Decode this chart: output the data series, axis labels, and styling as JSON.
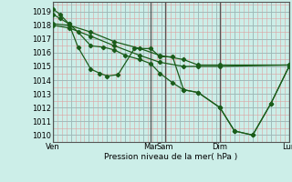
{
  "bg_color": "#cceee8",
  "line_color": "#1a5c1a",
  "xlabel": "Pression niveau de la mer( hPa )",
  "ylim": [
    1009.5,
    1019.7
  ],
  "yticks": [
    1010,
    1011,
    1012,
    1013,
    1014,
    1015,
    1016,
    1017,
    1018,
    1019
  ],
  "day_x": [
    0,
    5.4,
    6.2,
    9.2,
    13.0
  ],
  "day_labels": [
    "Ven",
    "Mar",
    "Sam",
    "Dim",
    "Lun"
  ],
  "xlim": [
    0,
    13.0
  ],
  "lines": [
    {
      "x": [
        0.0,
        0.4,
        0.9,
        1.4,
        2.1,
        2.6,
        3.0,
        3.6,
        4.5,
        5.4,
        5.9,
        6.6,
        7.2,
        8.0,
        9.2,
        10.0,
        11.0,
        12.0,
        13.0
      ],
      "y": [
        1019.2,
        1018.8,
        1018.1,
        1016.4,
        1014.8,
        1014.5,
        1014.3,
        1014.4,
        1016.3,
        1016.3,
        1015.7,
        1015.7,
        1013.3,
        1013.1,
        1012.0,
        1010.3,
        1010.0,
        1012.3,
        1015.0
      ]
    },
    {
      "x": [
        0.0,
        0.4,
        0.9,
        1.4,
        2.1,
        2.8,
        3.4,
        4.0,
        4.8,
        5.4,
        5.9,
        6.6,
        7.2,
        8.0,
        9.2,
        10.0,
        11.0,
        12.0,
        13.0
      ],
      "y": [
        1018.8,
        1018.5,
        1018.1,
        1017.5,
        1016.5,
        1016.4,
        1016.2,
        1015.8,
        1015.5,
        1015.2,
        1014.5,
        1013.8,
        1013.3,
        1013.1,
        1012.0,
        1010.3,
        1010.0,
        1012.3,
        1015.0
      ]
    },
    {
      "x": [
        0.0,
        0.9,
        2.1,
        3.4,
        4.8,
        5.9,
        7.2,
        8.0,
        9.2,
        13.0
      ],
      "y": [
        1018.1,
        1018.0,
        1017.5,
        1016.8,
        1016.3,
        1015.8,
        1015.5,
        1015.1,
        1015.1,
        1015.1
      ]
    },
    {
      "x": [
        0.0,
        0.9,
        2.1,
        3.4,
        4.8,
        5.9,
        7.2,
        8.0,
        9.2,
        13.0
      ],
      "y": [
        1018.0,
        1017.8,
        1017.2,
        1016.5,
        1015.8,
        1015.3,
        1015.0,
        1015.0,
        1015.0,
        1015.1
      ]
    }
  ]
}
